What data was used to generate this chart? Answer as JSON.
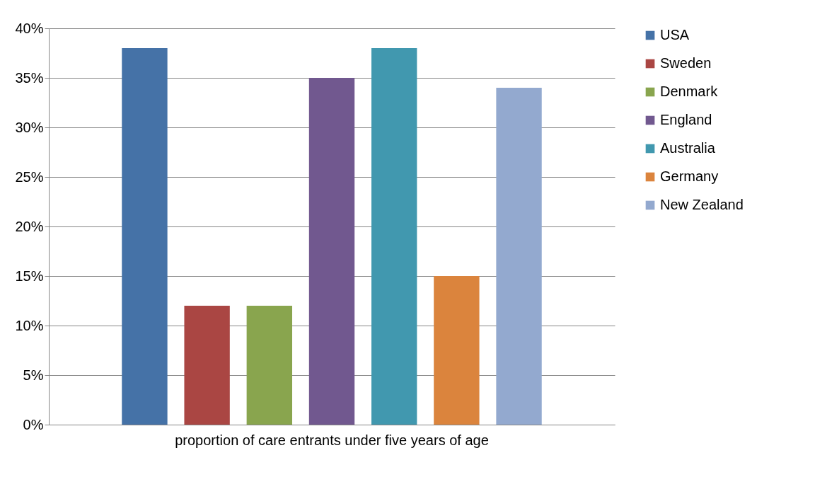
{
  "chart_data": {
    "type": "bar",
    "categories": [
      "proportion of care entrants under five years of age"
    ],
    "series": [
      {
        "name": "USA",
        "color": "#4572a7",
        "values": [
          38
        ]
      },
      {
        "name": "Sweden",
        "color": "#aa4643",
        "values": [
          12
        ]
      },
      {
        "name": "Denmark",
        "color": "#89a54e",
        "values": [
          12
        ]
      },
      {
        "name": "England",
        "color": "#71588f",
        "values": [
          35
        ]
      },
      {
        "name": "Australia",
        "color": "#4198af",
        "values": [
          38
        ]
      },
      {
        "name": "Germany",
        "color": "#db843d",
        "values": [
          15
        ]
      },
      {
        "name": "New Zealand",
        "color": "#93a9cf",
        "values": [
          34
        ]
      }
    ],
    "ylim": [
      0,
      40
    ],
    "yticks": [
      {
        "value": 0,
        "label": "0%"
      },
      {
        "value": 5,
        "label": "5%"
      },
      {
        "value": 10,
        "label": "10%"
      },
      {
        "value": 15,
        "label": "15%"
      },
      {
        "value": 20,
        "label": "20%"
      },
      {
        "value": 25,
        "label": "25%"
      },
      {
        "value": 30,
        "label": "30%"
      },
      {
        "value": 35,
        "label": "35%"
      },
      {
        "value": 40,
        "label": "40%"
      }
    ],
    "grid": "y",
    "legend": "right"
  }
}
